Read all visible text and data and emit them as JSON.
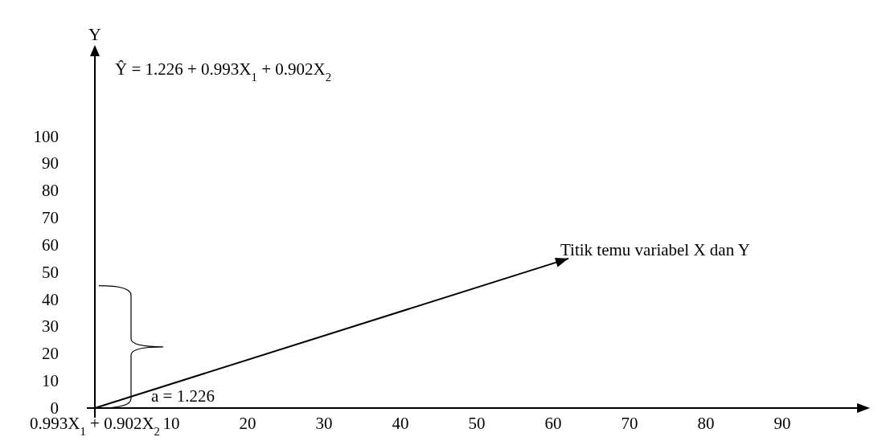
{
  "chart_data": {
    "type": "line",
    "xlim": [
      0,
      100
    ],
    "ylim": [
      0,
      130
    ],
    "xticks": [
      {
        "value": 0,
        "label": "0.993X$_{1}$ + 0.902X$_{2}$"
      },
      10,
      20,
      30,
      40,
      50,
      60,
      70,
      80,
      90
    ],
    "yticks": [
      0,
      10,
      20,
      30,
      40,
      50,
      60,
      70,
      80,
      90,
      100
    ],
    "x": [
      0,
      62
    ],
    "series": [
      {
        "color": "#000000",
        "values": [
          0,
          55
        ]
      }
    ],
    "annotations": [
      {
        "text": "Titik temu variabel X dan Y",
        "x": 62,
        "y": 55
      },
      "Ŷ = 1.226 + 0.993X$_{1}$ + 0.902X$_{2}$",
      "a = 1.226",
      "Y"
    ]
  }
}
